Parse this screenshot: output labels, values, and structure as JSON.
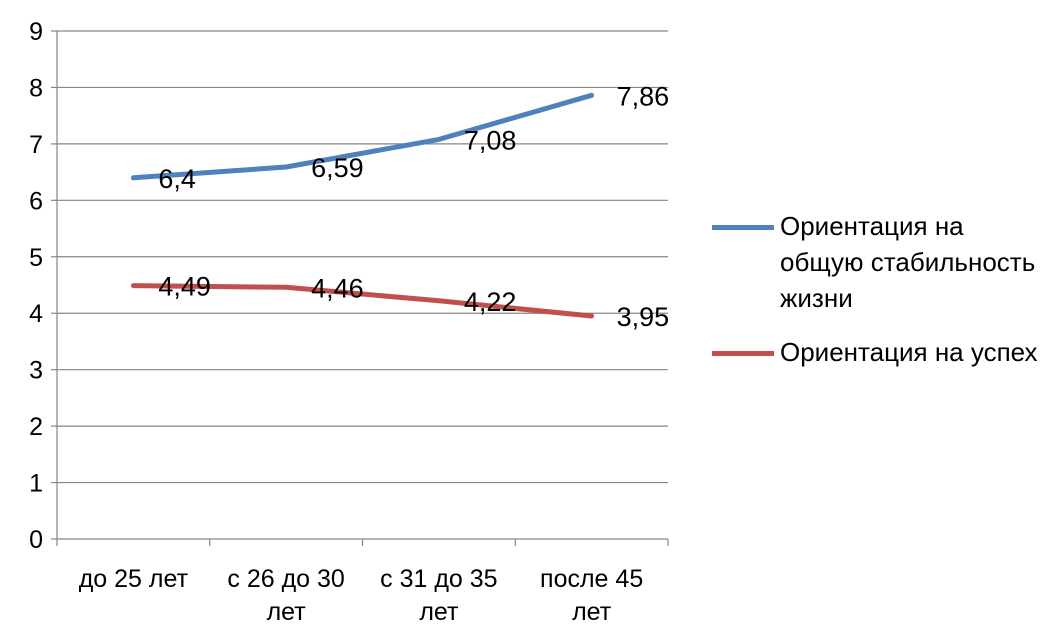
{
  "chart_data": {
    "type": "line",
    "title": "",
    "xlabel": "",
    "ylabel": "",
    "ylim": [
      0,
      9
    ],
    "yticks": [
      0,
      1,
      2,
      3,
      4,
      5,
      6,
      7,
      8,
      9
    ],
    "grid": "horizontal",
    "legend_position": "right",
    "categories": [
      [
        "до 25 лет"
      ],
      [
        "с 26 до 30",
        "лет"
      ],
      [
        "с 31 до 35",
        "лет"
      ],
      [
        "после 45",
        "лет"
      ]
    ],
    "series": [
      {
        "name": "Ориентация на общую стабильность жизни",
        "color": "#4F81BD",
        "values": [
          6.4,
          6.59,
          7.08,
          7.86
        ],
        "labels": [
          "6,4",
          "6,59",
          "7,08",
          "7,86"
        ]
      },
      {
        "name": "Ориентация на успех",
        "color": "#C0504D",
        "values": [
          4.49,
          4.46,
          4.22,
          3.95
        ],
        "labels": [
          "4,49",
          "4,46",
          "4,22",
          "3,95"
        ]
      }
    ]
  },
  "legend": {
    "items": [
      {
        "label": "Ориентация на общую стабильность жизни",
        "color": "#4F81BD"
      },
      {
        "label": "Ориентация на успех",
        "color": "#C0504D"
      }
    ]
  }
}
